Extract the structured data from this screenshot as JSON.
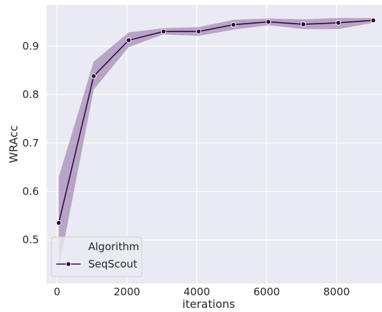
{
  "chart_data": {
    "type": "line",
    "xlabel": "iterations",
    "ylabel": "WRAcc",
    "xlim": [
      -300,
      9300
    ],
    "ylim": [
      0.41,
      0.985
    ],
    "x_ticks": [
      0,
      2000,
      4000,
      6000,
      8000
    ],
    "y_ticks": [
      0.5,
      0.6,
      0.7,
      0.8,
      0.9
    ],
    "x_tick_labels": [
      "0",
      "2000",
      "4000",
      "6000",
      "8000"
    ],
    "y_tick_labels": [
      "0.5",
      "0.6",
      "0.7",
      "0.8",
      "0.9"
    ],
    "grid": true,
    "legend": {
      "title": "Algorithm",
      "placement": "bottom-left",
      "entries": [
        "SeqScout"
      ]
    },
    "series": [
      {
        "name": "SeqScout",
        "color": "#2b0a3d",
        "band_color": "#8e6aa3",
        "x": [
          50,
          1050,
          2050,
          3050,
          4050,
          5050,
          6050,
          7050,
          8050,
          9050
        ],
        "values": [
          0.535,
          0.838,
          0.912,
          0.93,
          0.93,
          0.944,
          0.95,
          0.945,
          0.948,
          0.953
        ],
        "lower": [
          0.44,
          0.81,
          0.898,
          0.924,
          0.921,
          0.934,
          0.943,
          0.935,
          0.935,
          0.948
        ],
        "upper": [
          0.63,
          0.868,
          0.928,
          0.937,
          0.939,
          0.954,
          0.957,
          0.955,
          0.958,
          0.958
        ]
      }
    ]
  }
}
